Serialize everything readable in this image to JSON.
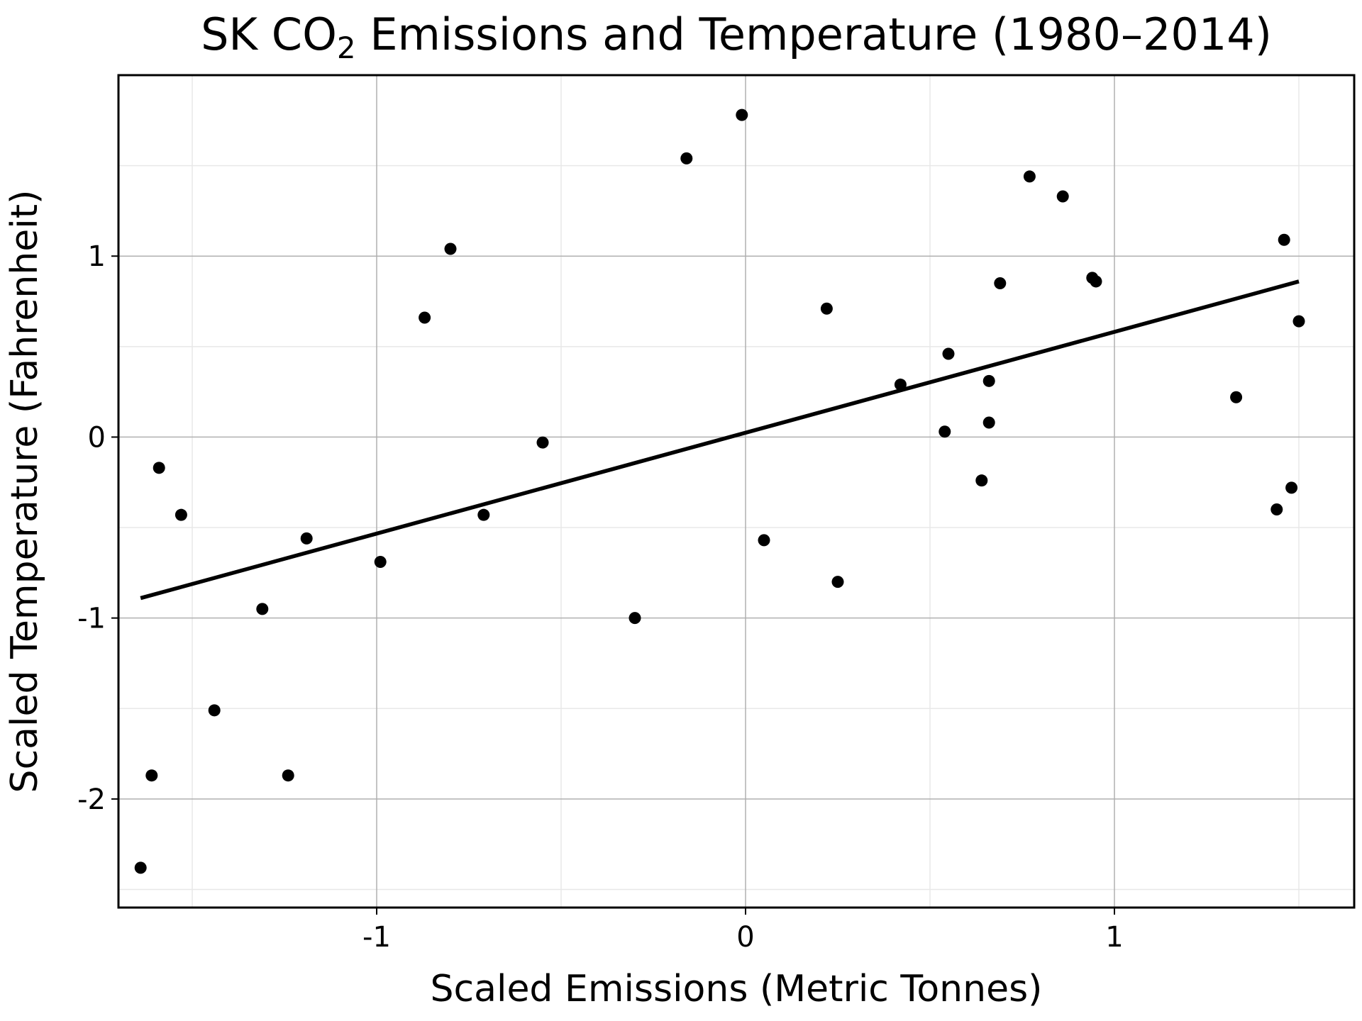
{
  "chart_data": {
    "type": "scatter",
    "title_main": "SK CO",
    "title_sub": "2",
    "title_rest": " Emissions and Temperature (1980–2014)",
    "xlabel": "Scaled Emissions (Metric Tonnes)",
    "ylabel": "Scaled Temperature (Fahrenheit)",
    "xlim": [
      -1.7,
      1.65
    ],
    "ylim": [
      -2.6,
      2.0
    ],
    "xticks": [
      -1,
      0,
      1
    ],
    "xtick_labels": [
      "-1",
      "0",
      "1"
    ],
    "yticks": [
      -2,
      -1,
      0,
      1
    ],
    "ytick_labels": [
      "-2",
      "-1",
      "0",
      "1"
    ],
    "minor_xticks": [
      -1.5,
      -0.5,
      0.5,
      1.5
    ],
    "minor_yticks": [
      -2.5,
      -1.5,
      -0.5,
      0.5,
      1.5
    ],
    "grid": true,
    "colors": {
      "points": "#000000",
      "line": "#000000",
      "grid_major": "#b0b0b0",
      "grid_minor": "#e8e8e8"
    },
    "series": [
      {
        "x": [
          -1.64,
          -1.61,
          -1.59,
          -1.53,
          -1.44,
          -1.31,
          -1.24,
          -1.19,
          -0.99,
          -0.87,
          -0.8,
          -0.71,
          -0.55,
          -0.3,
          -0.16,
          -0.01,
          0.05,
          0.22,
          0.25,
          0.42,
          0.54,
          0.55,
          0.64,
          0.66,
          0.66,
          0.69,
          0.77,
          0.86,
          0.94,
          0.95,
          1.33,
          1.44,
          1.46,
          1.48,
          1.5
        ],
        "y": [
          -2.38,
          -1.87,
          -0.17,
          -0.43,
          -1.51,
          -0.95,
          -1.87,
          -0.56,
          -0.69,
          0.66,
          1.04,
          -0.43,
          -0.03,
          -1.0,
          1.54,
          1.78,
          -0.57,
          0.71,
          -0.8,
          0.29,
          0.03,
          0.46,
          -0.24,
          0.31,
          0.08,
          0.85,
          1.44,
          1.33,
          0.88,
          0.86,
          0.22,
          -0.4,
          1.09,
          -0.28,
          0.64
        ]
      }
    ],
    "fit_line": {
      "x": [
        -1.64,
        1.5
      ],
      "y": [
        -0.89,
        0.86
      ]
    }
  }
}
